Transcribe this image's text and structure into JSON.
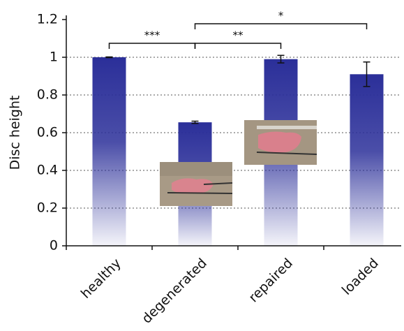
{
  "chart_data": {
    "type": "bar",
    "y_label": "Disc height",
    "categories": [
      "healthy",
      "degenerated",
      "repaired",
      "loaded"
    ],
    "values": [
      1.0,
      0.655,
      0.99,
      0.91
    ],
    "errors": [
      0.002,
      0.006,
      0.02,
      0.065
    ],
    "color": "#2b2f99",
    "ylim": [
      0,
      1.2
    ],
    "yticks": [
      0,
      0.2,
      0.4,
      0.6,
      0.8,
      1,
      1.2
    ],
    "grid": true,
    "annotations": [
      {
        "label": "***",
        "from": "healthy",
        "to": "degenerated"
      },
      {
        "label": "**",
        "from": "degenerated",
        "to": "repaired"
      },
      {
        "label": "*",
        "from": "degenerated",
        "to": "loaded"
      }
    ]
  }
}
